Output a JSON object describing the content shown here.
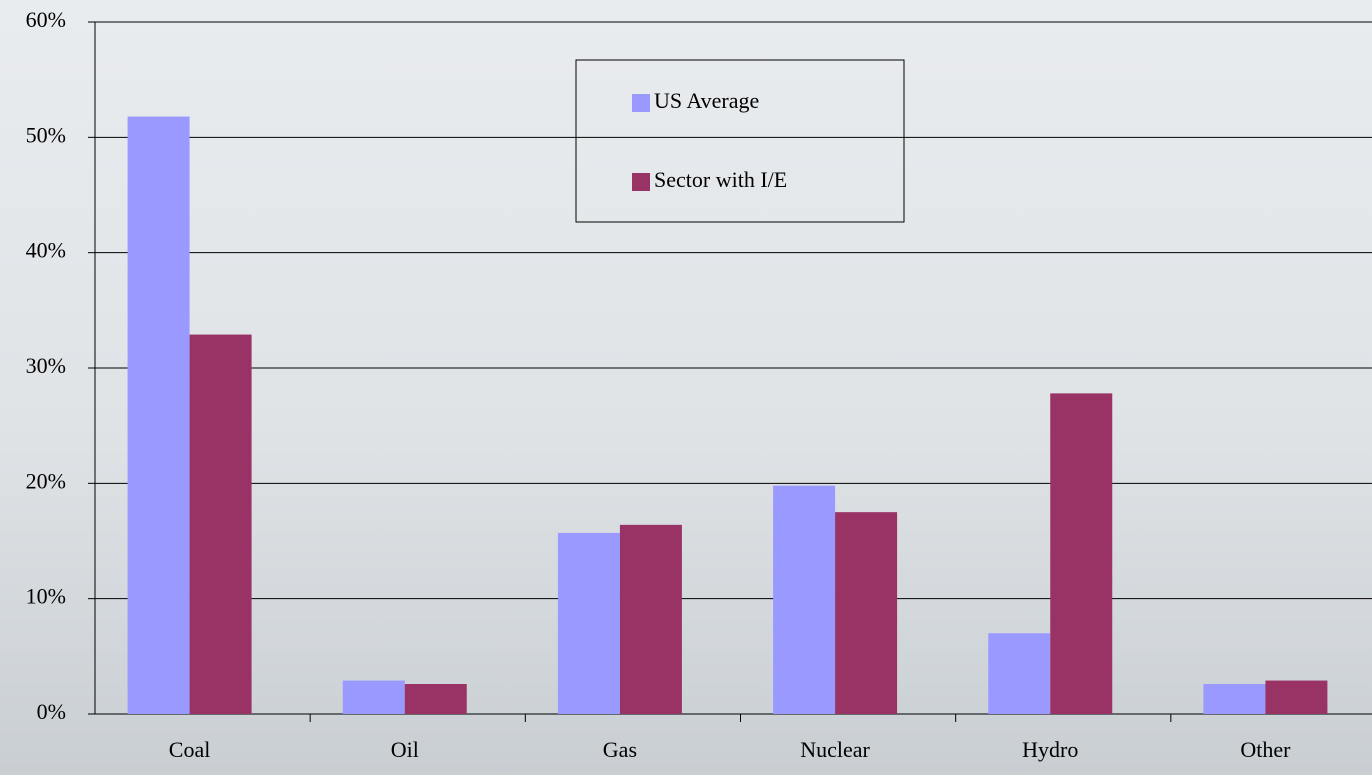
{
  "chart_data": {
    "type": "bar",
    "categories": [
      "Coal",
      "Oil",
      "Gas",
      "Nuclear",
      "Hydro",
      "Other"
    ],
    "series": [
      {
        "name": "US Average",
        "color": "#9999ff",
        "values": [
          51.8,
          2.9,
          15.7,
          19.8,
          7.0,
          2.6
        ]
      },
      {
        "name": "Sector with I/E",
        "color": "#993366",
        "values": [
          32.9,
          2.6,
          16.4,
          17.5,
          27.8,
          2.9
        ]
      }
    ],
    "ylim": [
      0,
      60
    ],
    "yticks": [
      {
        "value": 0,
        "label": "0%"
      },
      {
        "value": 10,
        "label": "10%"
      },
      {
        "value": 20,
        "label": "20%"
      },
      {
        "value": 30,
        "label": "30%"
      },
      {
        "value": 40,
        "label": "40%"
      },
      {
        "value": 50,
        "label": "50%"
      },
      {
        "value": 60,
        "label": "60%"
      }
    ],
    "grid": true,
    "legend": "top"
  }
}
